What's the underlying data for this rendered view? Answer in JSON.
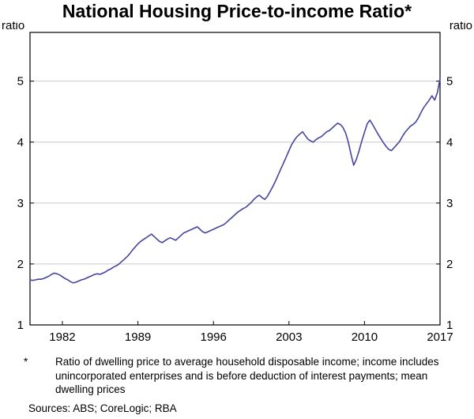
{
  "title": "National Housing Price-to-income Ratio*",
  "footnote": {
    "marker": "*",
    "text": "Ratio of dwelling price to average household disposable income; income includes unincorporated enterprises and is before deduction of interest payments; mean dwelling prices"
  },
  "sources": "Sources: ABS; CoreLogic; RBA",
  "chart_data": {
    "type": "line",
    "title": "National Housing Price-to-income Ratio",
    "xlabel": "",
    "ylabel": "ratio",
    "x_start": 1979,
    "x_step": 0.25,
    "xlim": [
      1979,
      2017
    ],
    "ylim": [
      1,
      5.8
    ],
    "x_ticks": [
      1982,
      1989,
      1996,
      2003,
      2010,
      2017
    ],
    "y_ticks": [
      1,
      2,
      3,
      4,
      5
    ],
    "grid": true,
    "legend": "none",
    "line_color": "#45459E",
    "grid_color": "#c9c9c9",
    "axis_color": "#000000",
    "series": [
      {
        "name": "National housing price-to-income ratio",
        "values": [
          1.74,
          1.73,
          1.74,
          1.75,
          1.75,
          1.76,
          1.78,
          1.8,
          1.83,
          1.85,
          1.84,
          1.82,
          1.79,
          1.76,
          1.74,
          1.71,
          1.69,
          1.7,
          1.72,
          1.74,
          1.75,
          1.77,
          1.79,
          1.81,
          1.83,
          1.84,
          1.83,
          1.85,
          1.87,
          1.9,
          1.92,
          1.95,
          1.97,
          2.0,
          2.04,
          2.08,
          2.12,
          2.17,
          2.23,
          2.28,
          2.33,
          2.37,
          2.4,
          2.43,
          2.46,
          2.49,
          2.45,
          2.41,
          2.37,
          2.35,
          2.38,
          2.41,
          2.43,
          2.41,
          2.39,
          2.43,
          2.47,
          2.51,
          2.53,
          2.55,
          2.57,
          2.59,
          2.61,
          2.57,
          2.53,
          2.51,
          2.53,
          2.55,
          2.57,
          2.59,
          2.61,
          2.63,
          2.65,
          2.69,
          2.73,
          2.77,
          2.81,
          2.85,
          2.88,
          2.91,
          2.93,
          2.97,
          3.01,
          3.06,
          3.1,
          3.13,
          3.09,
          3.06,
          3.11,
          3.19,
          3.27,
          3.36,
          3.46,
          3.56,
          3.66,
          3.76,
          3.86,
          3.96,
          4.03,
          4.09,
          4.13,
          4.17,
          4.11,
          4.05,
          4.02,
          4.0,
          4.04,
          4.07,
          4.09,
          4.13,
          4.17,
          4.19,
          4.23,
          4.27,
          4.31,
          4.29,
          4.24,
          4.15,
          4.0,
          3.8,
          3.62,
          3.72,
          3.86,
          4.02,
          4.16,
          4.3,
          4.36,
          4.29,
          4.21,
          4.13,
          4.06,
          3.99,
          3.93,
          3.88,
          3.86,
          3.91,
          3.96,
          4.01,
          4.09,
          4.16,
          4.21,
          4.26,
          4.29,
          4.33,
          4.4,
          4.49,
          4.57,
          4.63,
          4.69,
          4.76,
          4.69,
          4.81,
          5.04
        ]
      }
    ]
  }
}
